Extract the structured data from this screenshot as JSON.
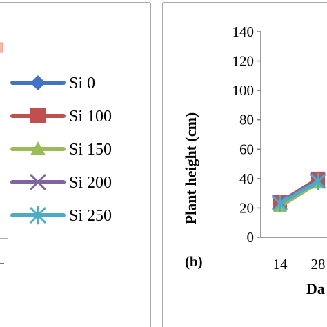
{
  "chart_data": [
    {
      "type": "line",
      "panel": "",
      "title": "",
      "xlabel": "",
      "ylabel": "",
      "legend": {
        "placement": "right",
        "entries": [
          {
            "name": "Si 0",
            "color": "#4472c4",
            "marker": "diamond"
          },
          {
            "name": "Si 100",
            "color": "#c0504d",
            "marker": "square"
          },
          {
            "name": "Si 150",
            "color": "#9bbb59",
            "marker": "triangle"
          },
          {
            "name": "Si 200",
            "color": "#8064a2",
            "marker": "x"
          },
          {
            "name": "Si 250",
            "color": "#4bacc6",
            "marker": "asterisk"
          }
        ]
      }
    },
    {
      "type": "line",
      "panel": "(b)",
      "title": "",
      "ylabel": "Plant height (cm)",
      "xlabel": "Da",
      "x": [
        14,
        28
      ],
      "x_tick_labels": [
        "14",
        "28"
      ],
      "ylim": [
        0,
        140
      ],
      "yticks": [
        0,
        20,
        40,
        60,
        80,
        100,
        120,
        140
      ],
      "grid": false,
      "series": [
        {
          "name": "Si 0",
          "values": [
            24,
            39
          ],
          "color": "#4472c4",
          "marker": "diamond"
        },
        {
          "name": "Si 100",
          "values": [
            24,
            40
          ],
          "color": "#c0504d",
          "marker": "square"
        },
        {
          "name": "Si 150",
          "values": [
            21,
            37
          ],
          "color": "#9bbb59",
          "marker": "triangle"
        },
        {
          "name": "Si 200",
          "values": [
            24,
            39
          ],
          "color": "#8064a2",
          "marker": "x"
        },
        {
          "name": "Si 250",
          "values": [
            23,
            38
          ],
          "color": "#4bacc6",
          "marker": "asterisk"
        }
      ]
    }
  ]
}
